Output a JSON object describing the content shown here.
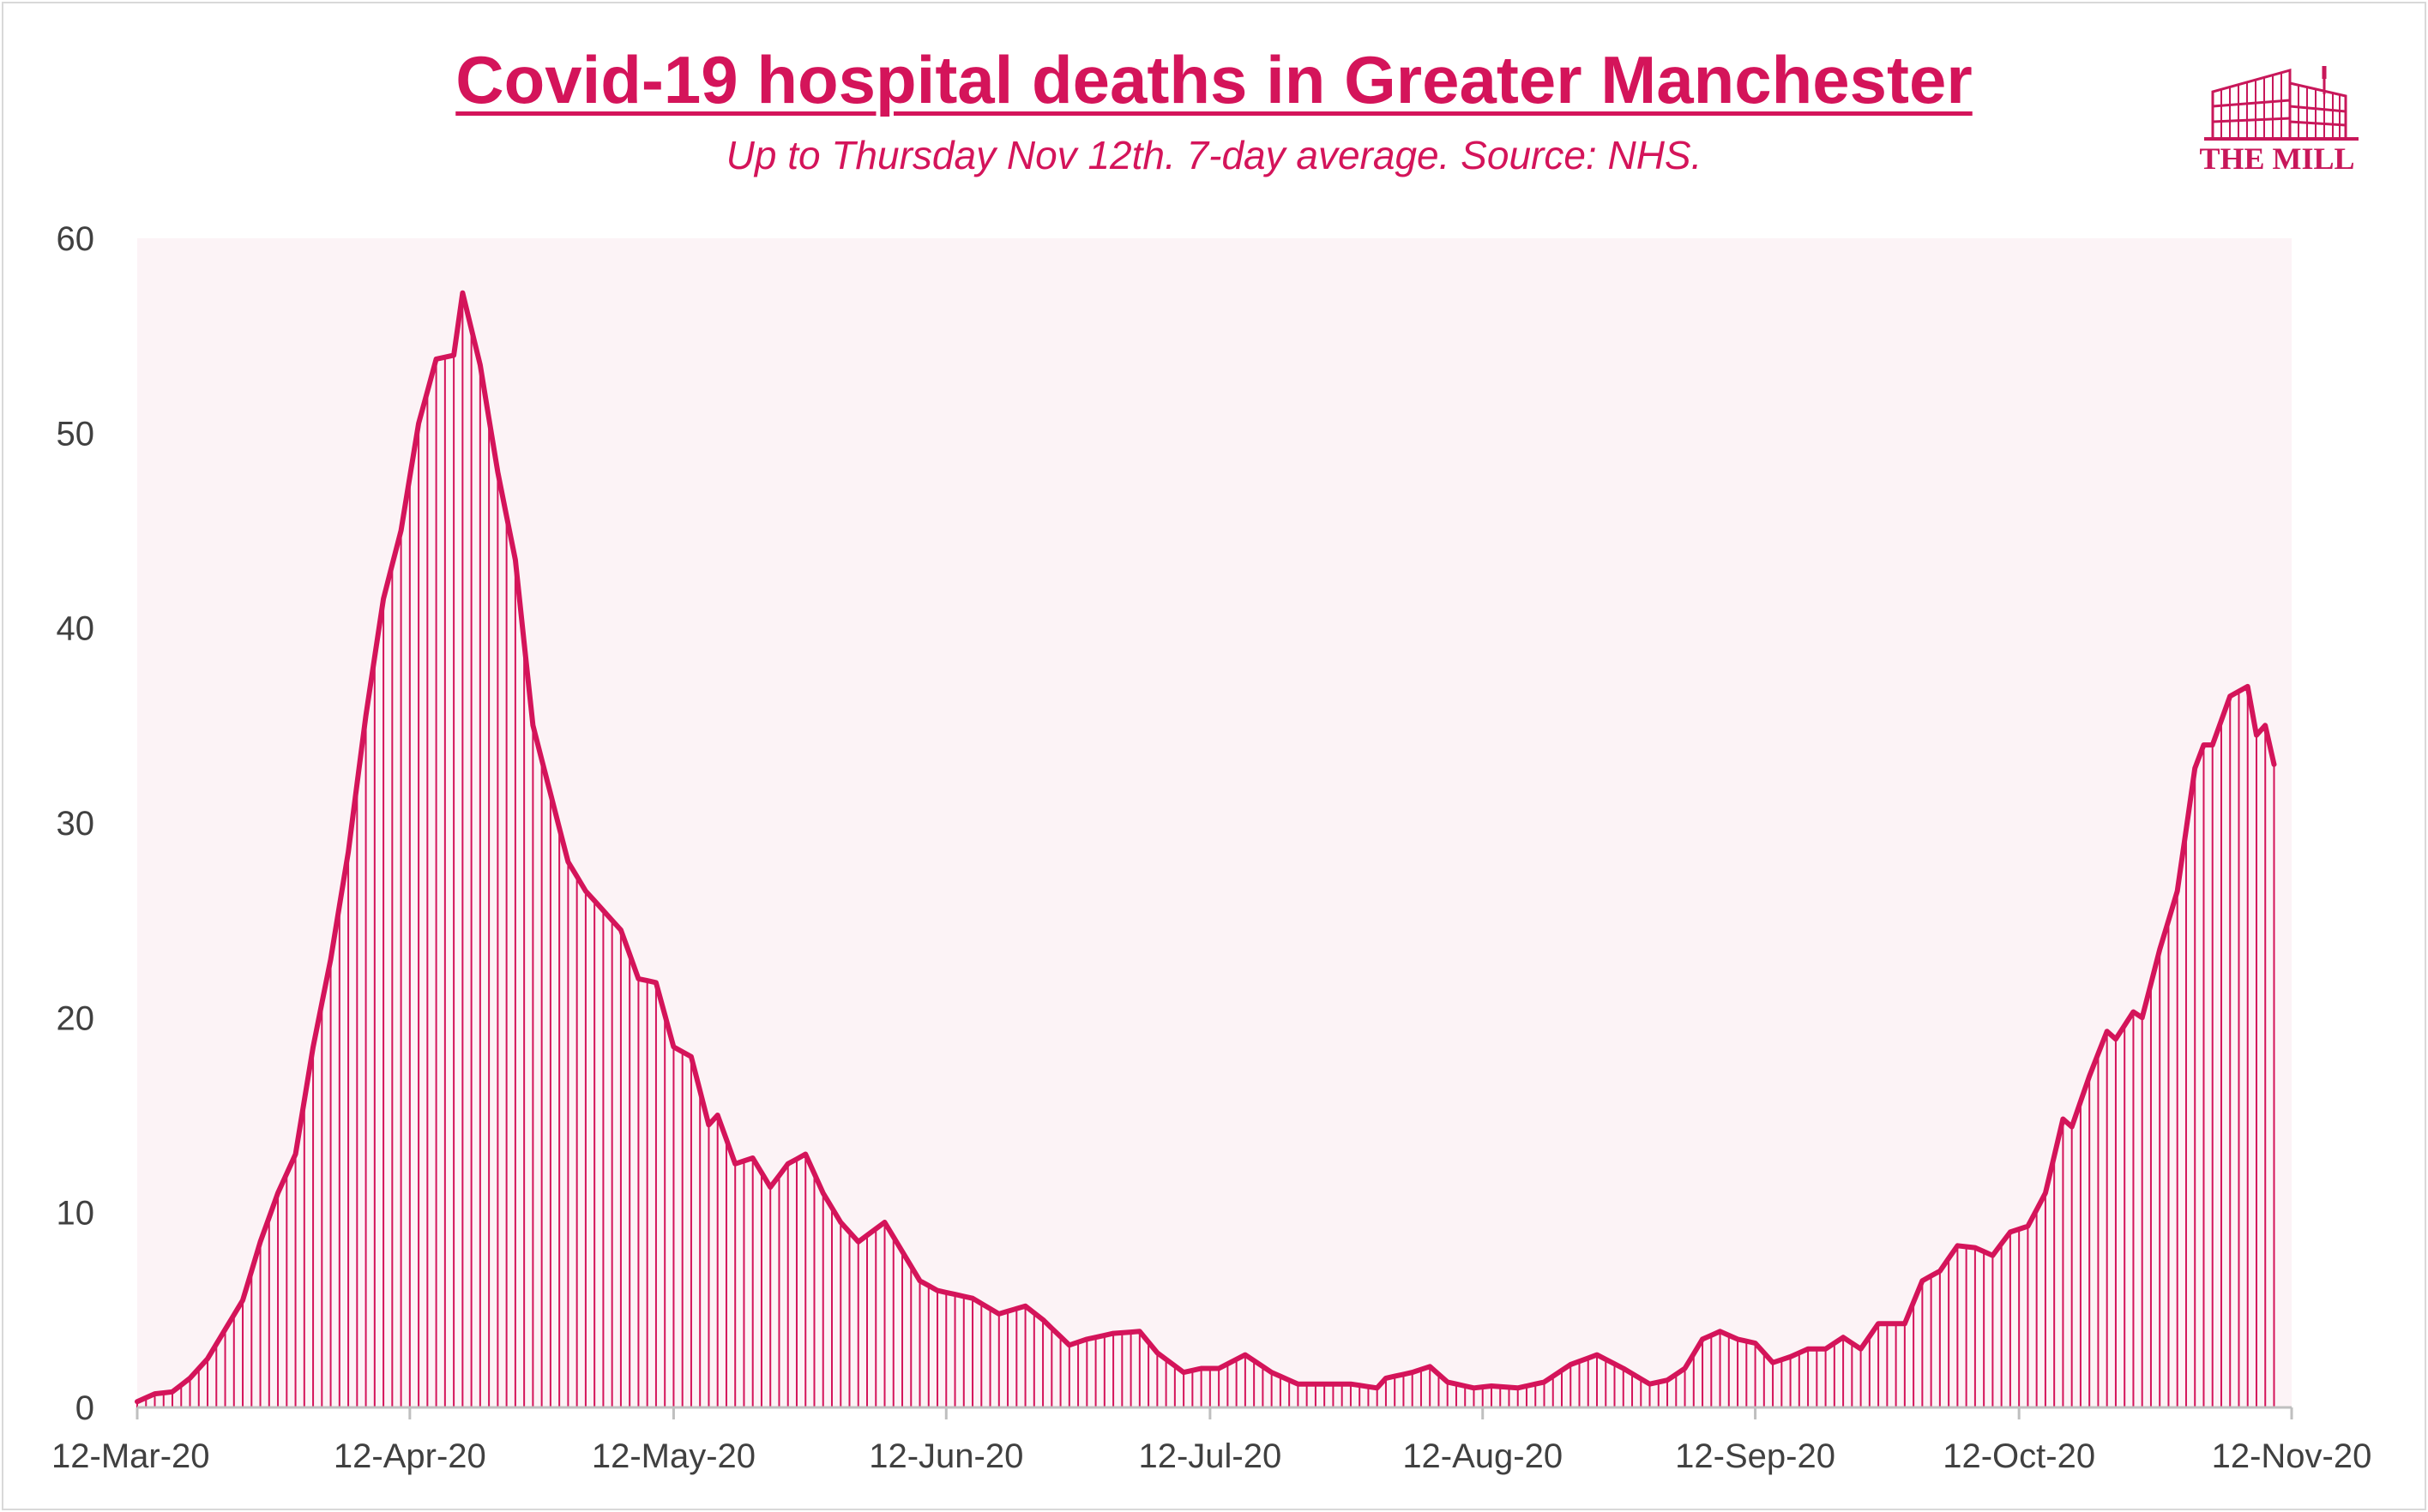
{
  "chart_data": {
    "type": "area",
    "title": "Covid-19 hospital deaths in Greater Manchester",
    "subtitle": "Up to Thursday Nov 12th. 7-day average. Source: NHS.",
    "xlabel": "",
    "ylabel": "",
    "ylim": [
      0,
      60
    ],
    "yticks": [
      0,
      10,
      20,
      30,
      40,
      50,
      60
    ],
    "xticks": [
      "12-Mar-20",
      "12-Apr-20",
      "12-May-20",
      "12-Jun-20",
      "12-Jul-20",
      "12-Aug-20",
      "12-Sep-20",
      "12-Oct-20",
      "12-Nov-20"
    ],
    "x_start": "2020-03-12",
    "x_end": "2020-11-12",
    "grid": false,
    "legend": "none",
    "color": "#d4145a",
    "series": [
      {
        "name": "",
        "keypoints": [
          [
            "2020-03-12",
            0.3
          ],
          [
            "2020-03-14",
            0.7
          ],
          [
            "2020-03-16",
            0.8
          ],
          [
            "2020-03-18",
            1.5
          ],
          [
            "2020-03-20",
            2.5
          ],
          [
            "2020-03-22",
            4.0
          ],
          [
            "2020-03-24",
            5.5
          ],
          [
            "2020-03-26",
            8.5
          ],
          [
            "2020-03-28",
            11.0
          ],
          [
            "2020-03-30",
            13.0
          ],
          [
            "2020-04-01",
            18.5
          ],
          [
            "2020-04-03",
            23.0
          ],
          [
            "2020-04-05",
            28.5
          ],
          [
            "2020-04-07",
            35.5
          ],
          [
            "2020-04-09",
            41.5
          ],
          [
            "2020-04-11",
            45.0
          ],
          [
            "2020-04-13",
            50.5
          ],
          [
            "2020-04-15",
            53.8
          ],
          [
            "2020-04-17",
            54.0
          ],
          [
            "2020-04-18",
            57.2
          ],
          [
            "2020-04-20",
            53.5
          ],
          [
            "2020-04-22",
            48.0
          ],
          [
            "2020-04-24",
            43.5
          ],
          [
            "2020-04-26",
            35.0
          ],
          [
            "2020-04-28",
            31.5
          ],
          [
            "2020-04-30",
            28.0
          ],
          [
            "2020-05-02",
            26.5
          ],
          [
            "2020-05-04",
            25.5
          ],
          [
            "2020-05-06",
            24.5
          ],
          [
            "2020-05-08",
            22.0
          ],
          [
            "2020-05-10",
            21.8
          ],
          [
            "2020-05-12",
            18.5
          ],
          [
            "2020-05-14",
            18.0
          ],
          [
            "2020-05-16",
            14.5
          ],
          [
            "2020-05-17",
            15.0
          ],
          [
            "2020-05-19",
            12.5
          ],
          [
            "2020-05-21",
            12.8
          ],
          [
            "2020-05-23",
            11.3
          ],
          [
            "2020-05-25",
            12.5
          ],
          [
            "2020-05-27",
            13.0
          ],
          [
            "2020-05-29",
            11.0
          ],
          [
            "2020-05-31",
            9.5
          ],
          [
            "2020-06-02",
            8.5
          ],
          [
            "2020-06-05",
            9.5
          ],
          [
            "2020-06-07",
            8.0
          ],
          [
            "2020-06-09",
            6.5
          ],
          [
            "2020-06-11",
            6.0
          ],
          [
            "2020-06-15",
            5.6
          ],
          [
            "2020-06-18",
            4.8
          ],
          [
            "2020-06-21",
            5.2
          ],
          [
            "2020-06-23",
            4.5
          ],
          [
            "2020-06-26",
            3.2
          ],
          [
            "2020-06-28",
            3.5
          ],
          [
            "2020-07-01",
            3.8
          ],
          [
            "2020-07-04",
            3.9
          ],
          [
            "2020-07-06",
            2.8
          ],
          [
            "2020-07-09",
            1.8
          ],
          [
            "2020-07-11",
            2.0
          ],
          [
            "2020-07-13",
            2.0
          ],
          [
            "2020-07-16",
            2.7
          ],
          [
            "2020-07-19",
            1.8
          ],
          [
            "2020-07-22",
            1.2
          ],
          [
            "2020-07-25",
            1.2
          ],
          [
            "2020-07-28",
            1.2
          ],
          [
            "2020-07-31",
            1.0
          ],
          [
            "2020-08-01",
            1.5
          ],
          [
            "2020-08-04",
            1.8
          ],
          [
            "2020-08-06",
            2.1
          ],
          [
            "2020-08-08",
            1.3
          ],
          [
            "2020-08-11",
            1.0
          ],
          [
            "2020-08-13",
            1.1
          ],
          [
            "2020-08-16",
            1.0
          ],
          [
            "2020-08-19",
            1.3
          ],
          [
            "2020-08-22",
            2.2
          ],
          [
            "2020-08-25",
            2.7
          ],
          [
            "2020-08-28",
            2.0
          ],
          [
            "2020-08-31",
            1.2
          ],
          [
            "2020-09-02",
            1.4
          ],
          [
            "2020-09-04",
            2.0
          ],
          [
            "2020-09-06",
            3.5
          ],
          [
            "2020-09-08",
            3.9
          ],
          [
            "2020-09-10",
            3.5
          ],
          [
            "2020-09-12",
            3.3
          ],
          [
            "2020-09-14",
            2.3
          ],
          [
            "2020-09-16",
            2.6
          ],
          [
            "2020-09-18",
            3.0
          ],
          [
            "2020-09-20",
            3.0
          ],
          [
            "2020-09-22",
            3.6
          ],
          [
            "2020-09-24",
            3.0
          ],
          [
            "2020-09-26",
            4.3
          ],
          [
            "2020-09-29",
            4.3
          ],
          [
            "2020-10-01",
            6.5
          ],
          [
            "2020-10-03",
            7.0
          ],
          [
            "2020-10-05",
            8.3
          ],
          [
            "2020-10-07",
            8.2
          ],
          [
            "2020-10-09",
            7.8
          ],
          [
            "2020-10-11",
            9.0
          ],
          [
            "2020-10-13",
            9.3
          ],
          [
            "2020-10-15",
            11.0
          ],
          [
            "2020-10-17",
            14.8
          ],
          [
            "2020-10-18",
            14.4
          ],
          [
            "2020-10-20",
            17.0
          ],
          [
            "2020-10-22",
            19.3
          ],
          [
            "2020-10-23",
            18.9
          ],
          [
            "2020-10-25",
            20.3
          ],
          [
            "2020-10-26",
            20.0
          ],
          [
            "2020-10-28",
            23.5
          ],
          [
            "2020-10-30",
            26.5
          ],
          [
            "2020-11-01",
            32.8
          ],
          [
            "2020-11-02",
            34.0
          ],
          [
            "2020-11-03",
            34.0
          ],
          [
            "2020-11-05",
            36.5
          ],
          [
            "2020-11-07",
            37.0
          ],
          [
            "2020-11-08",
            34.5
          ],
          [
            "2020-11-09",
            35.0
          ],
          [
            "2020-11-10",
            33.0
          ]
        ]
      }
    ]
  },
  "branding": {
    "logo_text": "THE MILL",
    "logo_icon": "mill-building-icon"
  }
}
